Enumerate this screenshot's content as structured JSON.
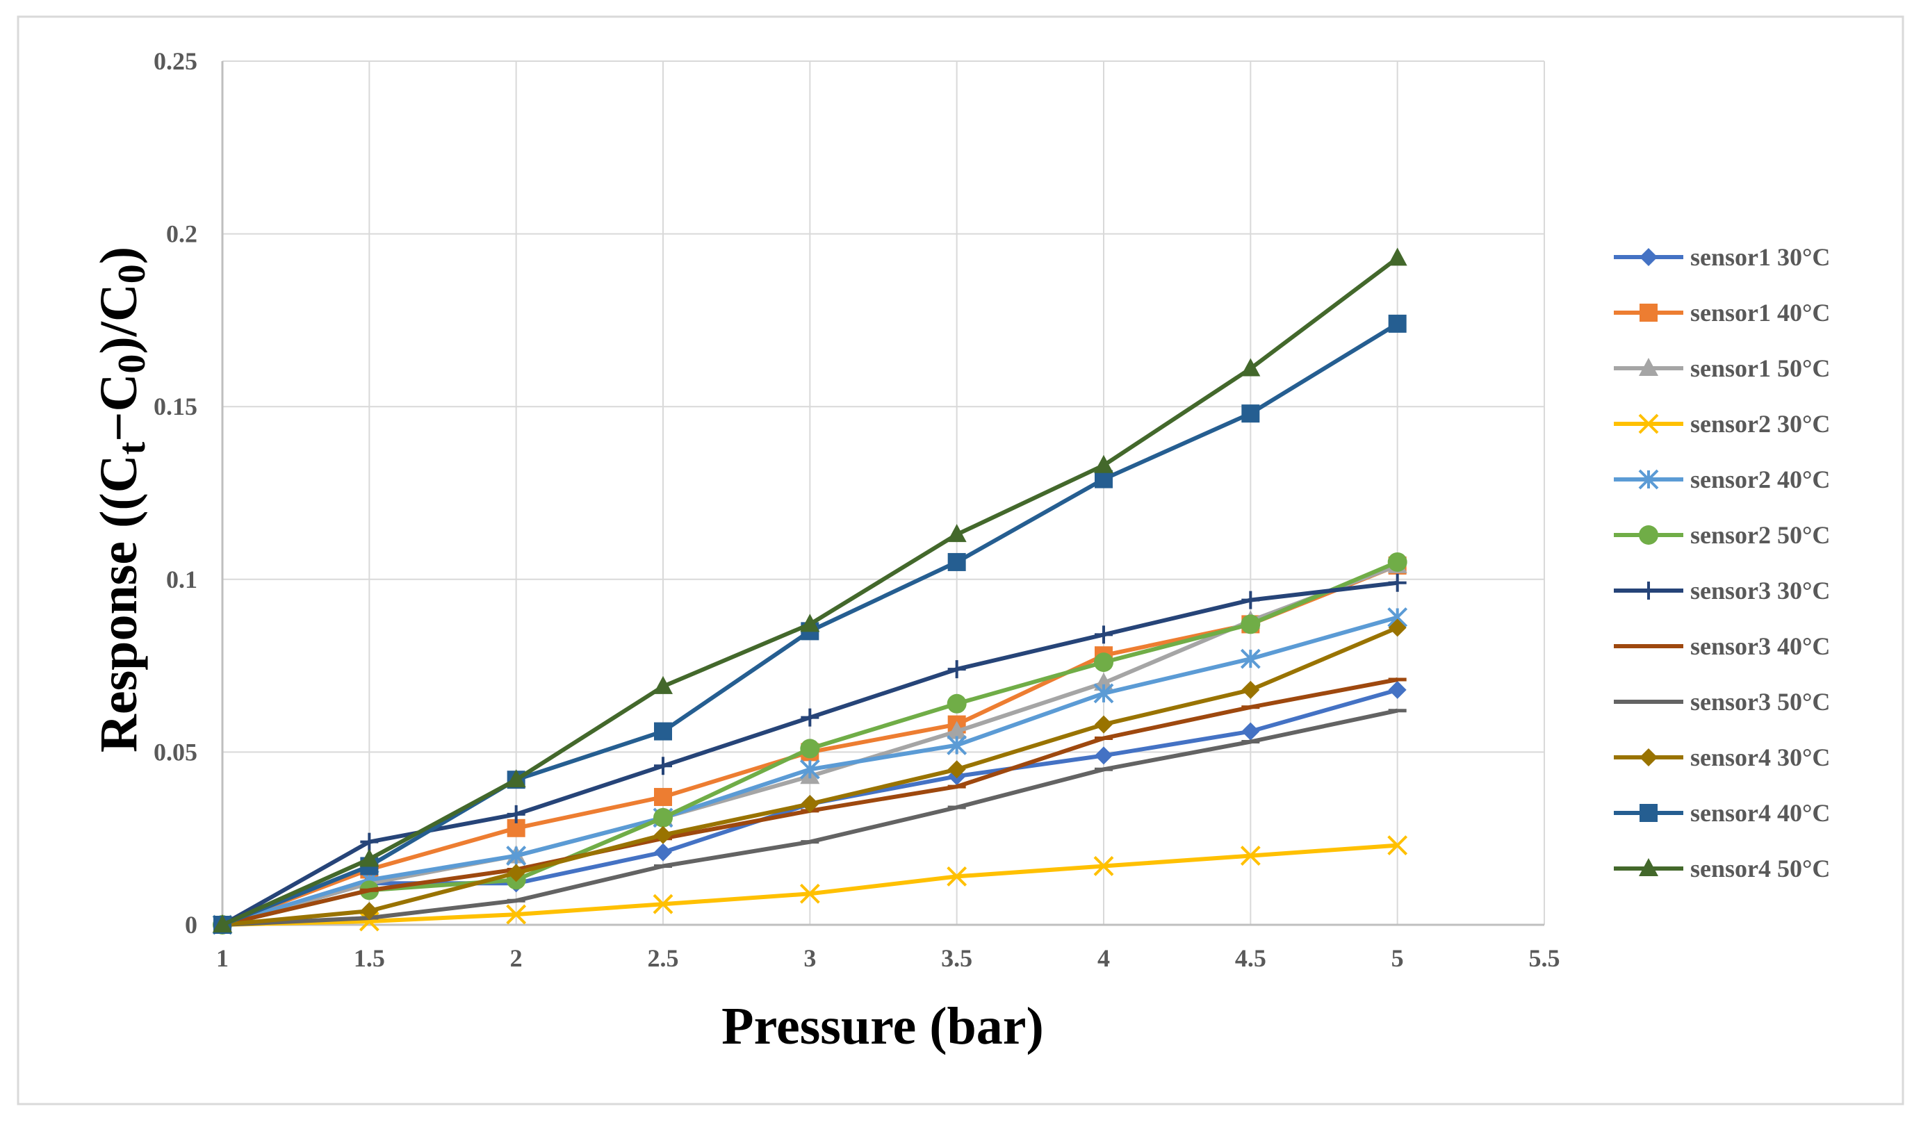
{
  "chart_data": {
    "type": "line",
    "title": "",
    "xlabel": "Pressure (bar)",
    "ylabel": "Response ((C",
    "ylabel_sub_t": "t",
    "ylabel_minus": "−C",
    "ylabel_sub_0a": "0",
    "ylabel_mid": ")/C",
    "ylabel_sub_0b": "0",
    "ylabel_end": ")",
    "xlim": [
      1,
      5.5
    ],
    "ylim": [
      0,
      0.25
    ],
    "x_ticks": [
      1,
      1.5,
      2,
      2.5,
      3,
      3.5,
      4,
      4.5,
      5,
      5.5
    ],
    "x_tick_labels": [
      "1",
      "1.5",
      "2",
      "2.5",
      "3",
      "3.5",
      "4",
      "4.5",
      "5",
      "5.5"
    ],
    "y_ticks": [
      0,
      0.05,
      0.1,
      0.15,
      0.2,
      0.25
    ],
    "y_tick_labels": [
      "0",
      "0.05",
      "0.1",
      "0.15",
      "0.2",
      "0.25"
    ],
    "grid": true,
    "legend_position": "right",
    "x": [
      1,
      1.5,
      2,
      2.5,
      3,
      3.5,
      4,
      4.5,
      5
    ],
    "series": [
      {
        "name": "sensor1 30°C",
        "color": "#4472C4",
        "marker": "diamond",
        "values": [
          0,
          0.012,
          0.012,
          0.021,
          0.035,
          0.043,
          0.049,
          0.056,
          0.068
        ]
      },
      {
        "name": "sensor1 40°C",
        "color": "#ED7D31",
        "marker": "square",
        "values": [
          0,
          0.016,
          0.028,
          0.037,
          0.05,
          0.058,
          0.078,
          0.087,
          0.104
        ]
      },
      {
        "name": "sensor1 50°C",
        "color": "#A5A5A5",
        "marker": "triangle",
        "values": [
          0,
          0.012,
          0.02,
          0.031,
          0.043,
          0.056,
          0.07,
          0.088,
          0.104
        ]
      },
      {
        "name": "sensor2 30°C",
        "color": "#FFC000",
        "marker": "x",
        "values": [
          0,
          0.001,
          0.003,
          0.006,
          0.009,
          0.014,
          0.017,
          0.02,
          0.023
        ]
      },
      {
        "name": "sensor2 40°C",
        "color": "#5B9BD5",
        "marker": "asterisk",
        "values": [
          0,
          0.013,
          0.02,
          0.031,
          0.045,
          0.052,
          0.067,
          0.077,
          0.089
        ]
      },
      {
        "name": "sensor2 50°C",
        "color": "#70AD47",
        "marker": "circle",
        "values": [
          0,
          0.01,
          0.013,
          0.031,
          0.051,
          0.064,
          0.076,
          0.087,
          0.105
        ]
      },
      {
        "name": "sensor3 30°C",
        "color": "#264478",
        "marker": "plus",
        "values": [
          0,
          0.024,
          0.032,
          0.046,
          0.06,
          0.074,
          0.084,
          0.094,
          0.099
        ]
      },
      {
        "name": "sensor3 40°C",
        "color": "#9E480E",
        "marker": "dash",
        "values": [
          0,
          0.01,
          0.016,
          0.025,
          0.033,
          0.04,
          0.054,
          0.063,
          0.071
        ]
      },
      {
        "name": "sensor3 50°C",
        "color": "#636363",
        "marker": "dash",
        "values": [
          0,
          0.002,
          0.007,
          0.017,
          0.024,
          0.034,
          0.045,
          0.053,
          0.062
        ]
      },
      {
        "name": "sensor4 30°C",
        "color": "#997300",
        "marker": "diamond",
        "values": [
          0,
          0.004,
          0.015,
          0.026,
          0.035,
          0.045,
          0.058,
          0.068,
          0.086
        ]
      },
      {
        "name": "sensor4 40°C",
        "color": "#255E91",
        "marker": "square",
        "values": [
          0,
          0.017,
          0.042,
          0.056,
          0.085,
          0.105,
          0.129,
          0.148,
          0.174
        ]
      },
      {
        "name": "sensor4 50°C",
        "color": "#43682B",
        "marker": "triangle",
        "values": [
          0,
          0.019,
          0.042,
          0.069,
          0.087,
          0.113,
          0.133,
          0.161,
          0.193
        ]
      }
    ]
  }
}
